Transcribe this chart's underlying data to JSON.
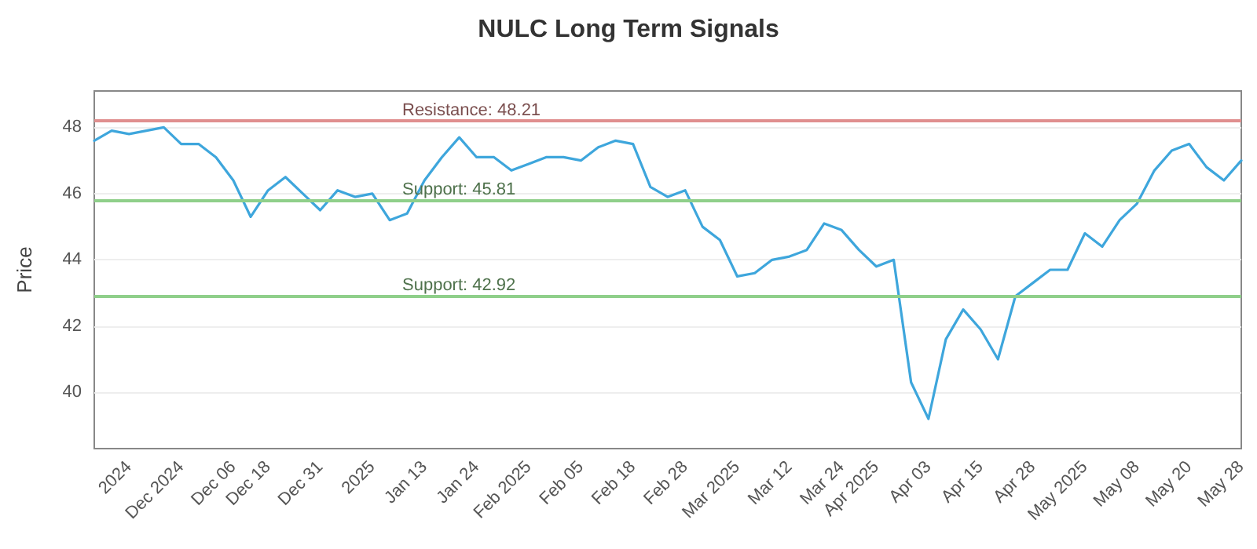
{
  "chart_data": {
    "type": "line",
    "title": "NULC Long Term Signals",
    "ylabel": "Price",
    "categories": [
      null,
      null,
      "2024",
      null,
      null,
      "Dec 2024",
      null,
      null,
      "Dec 06",
      null,
      "Dec 18",
      null,
      null,
      "Dec 31",
      null,
      null,
      "2025",
      null,
      null,
      "Jan 13",
      null,
      null,
      "Jan 24",
      null,
      null,
      "Feb 2025",
      null,
      null,
      "Feb 05",
      null,
      null,
      "Feb 18",
      null,
      null,
      "Feb 28",
      null,
      null,
      "Mar 2025",
      null,
      null,
      "Mar 12",
      null,
      null,
      "Mar 24",
      null,
      "Apr 2025",
      null,
      null,
      "Apr 03",
      null,
      null,
      "Apr 15",
      null,
      null,
      "Apr 28",
      null,
      null,
      "May 2025",
      null,
      null,
      "May 08",
      null,
      null,
      "May 20",
      null,
      null,
      "May 28"
    ],
    "series": [
      {
        "color": "#3ea6dc",
        "values": [
          47.6,
          47.9,
          47.8,
          47.9,
          48.0,
          47.5,
          47.5,
          47.1,
          46.4,
          45.3,
          46.1,
          46.5,
          46.0,
          45.5,
          46.1,
          45.9,
          46.0,
          45.2,
          45.4,
          46.4,
          47.1,
          47.7,
          47.1,
          47.1,
          46.7,
          46.9,
          47.1,
          47.1,
          47.0,
          47.4,
          47.6,
          47.5,
          46.2,
          45.9,
          46.1,
          45.0,
          44.6,
          43.5,
          43.6,
          44.0,
          44.1,
          44.3,
          45.1,
          44.9,
          44.3,
          43.8,
          44.0,
          40.3,
          39.2,
          41.6,
          42.5,
          41.9,
          41.0,
          42.9,
          43.3,
          43.7,
          43.7,
          44.8,
          44.4,
          45.2,
          45.7,
          46.7,
          47.3,
          47.5,
          46.8,
          46.4,
          47.0
        ]
      }
    ],
    "ylim": [
      38.3,
      49.1
    ],
    "yticks": [
      40,
      42,
      44,
      46,
      48
    ],
    "grid": "y",
    "marker": "none",
    "line_style": "solid",
    "ref_lines": [
      {
        "axis": "y",
        "value": 48.21,
        "label": "Resistance: 48.21",
        "color": "#e08f8f"
      },
      {
        "axis": "y",
        "value": 45.81,
        "label": "Support: 45.81",
        "color": "#8fcf8a"
      },
      {
        "axis": "y",
        "value": 42.92,
        "label": "Support: 42.92",
        "color": "#8fcf8a"
      }
    ]
  }
}
